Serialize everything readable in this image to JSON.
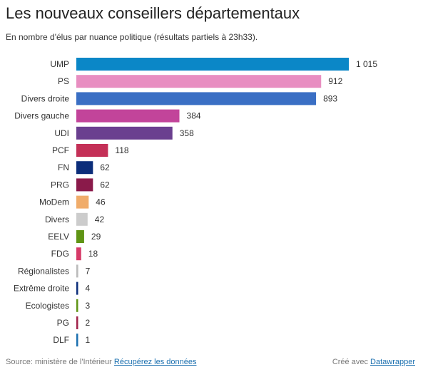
{
  "header": {
    "title": "Les nouveaux conseillers départementaux",
    "subtitle": "En nombre d'élus par nuance politique (résultats partiels à 23h33)."
  },
  "footer": {
    "source_label": "Source: ministère de l'Intérieur",
    "data_link": "Récupérez les données",
    "credit_label": "Créé avec",
    "credit_link": "Datawrapper"
  },
  "chart_data": {
    "type": "bar",
    "orientation": "horizontal",
    "title": "Les nouveaux conseillers départementaux",
    "subtitle": "En nombre d'élus par nuance politique (résultats partiels à 23h33).",
    "xlabel": "",
    "ylabel": "",
    "xlim": [
      0,
      1015
    ],
    "grid": false,
    "categories": [
      "UMP",
      "PS",
      "Divers droite",
      "Divers gauche",
      "UDI",
      "PCF",
      "FN",
      "PRG",
      "MoDem",
      "Divers",
      "EELV",
      "FDG",
      "Régionalistes",
      "Extrême droite",
      "Ecologistes",
      "PG",
      "DLF"
    ],
    "values": [
      1015,
      912,
      893,
      384,
      358,
      118,
      62,
      62,
      46,
      42,
      29,
      18,
      7,
      4,
      3,
      2,
      1
    ],
    "value_labels": [
      "1 015",
      "912",
      "893",
      "384",
      "358",
      "118",
      "62",
      "62",
      "46",
      "42",
      "29",
      "18",
      "7",
      "4",
      "3",
      "2",
      "1"
    ],
    "colors": [
      "#0b87c7",
      "#e88ec1",
      "#3a6fc4",
      "#c2449a",
      "#6a3f8f",
      "#c43057",
      "#0b2d7a",
      "#8a1a4a",
      "#f0ac6a",
      "#cccccc",
      "#5f9414",
      "#d63a68",
      "#bbbbbb",
      "#0b2d7a",
      "#5f9414",
      "#a0224a",
      "#1a6faf"
    ]
  }
}
